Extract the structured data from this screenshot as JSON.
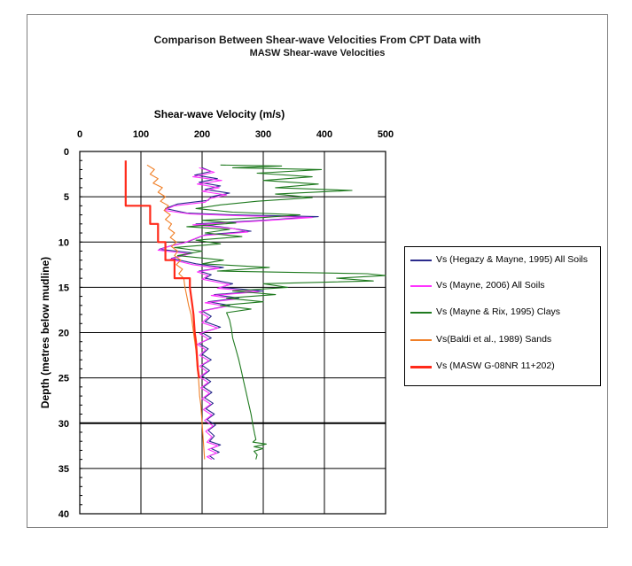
{
  "title_line1": "Comparison Between Shear-wave Velocities From CPT Data with",
  "title_line2": "MASW Shear-wave Velocities",
  "chart_data": {
    "type": "line",
    "xlabel": "Shear-wave Velocity (m/s)",
    "ylabel": "Depth (metres below mudline)",
    "x_axis_position": "top",
    "y_inverted": true,
    "xlim": [
      0,
      500
    ],
    "ylim": [
      0,
      40
    ],
    "xticks": [
      "0",
      "100",
      "200",
      "300",
      "400",
      "500"
    ],
    "yticks": [
      "0",
      "5",
      "10",
      "15",
      "20",
      "25",
      "30",
      "35",
      "40"
    ],
    "grid": true,
    "legend_position": "right",
    "series": [
      {
        "name": "Vs (Hegazy & Mayne, 1995) All Soils",
        "color": "#2b2b8c",
        "points": [
          [
            200,
            1.8
          ],
          [
            215,
            2.2
          ],
          [
            188,
            2.6
          ],
          [
            225,
            3.0
          ],
          [
            195,
            3.4
          ],
          [
            230,
            3.8
          ],
          [
            205,
            4.2
          ],
          [
            245,
            4.6
          ],
          [
            215,
            5.0
          ],
          [
            210,
            5.4
          ],
          [
            160,
            5.8
          ],
          [
            140,
            6.3
          ],
          [
            175,
            6.8
          ],
          [
            250,
            7.0
          ],
          [
            390,
            7.2
          ],
          [
            300,
            7.6
          ],
          [
            190,
            8.0
          ],
          [
            240,
            8.4
          ],
          [
            280,
            8.8
          ],
          [
            205,
            9.2
          ],
          [
            190,
            9.6
          ],
          [
            175,
            10.0
          ],
          [
            150,
            10.4
          ],
          [
            130,
            10.8
          ],
          [
            185,
            11.2
          ],
          [
            150,
            11.8
          ],
          [
            190,
            12.4
          ],
          [
            235,
            12.8
          ],
          [
            195,
            13.2
          ],
          [
            215,
            13.6
          ],
          [
            205,
            14.0
          ],
          [
            250,
            14.6
          ],
          [
            230,
            15.0
          ],
          [
            300,
            15.4
          ],
          [
            220,
            15.8
          ],
          [
            260,
            16.2
          ],
          [
            210,
            16.6
          ],
          [
            245,
            17.0
          ],
          [
            200,
            17.6
          ],
          [
            215,
            18.2
          ],
          [
            205,
            18.8
          ],
          [
            230,
            19.4
          ],
          [
            200,
            20.0
          ],
          [
            215,
            20.6
          ],
          [
            195,
            21.2
          ],
          [
            210,
            21.8
          ],
          [
            200,
            22.4
          ],
          [
            215,
            23.0
          ],
          [
            200,
            23.6
          ],
          [
            212,
            24.2
          ],
          [
            200,
            24.8
          ],
          [
            214,
            25.4
          ],
          [
            202,
            26.0
          ],
          [
            216,
            26.6
          ],
          [
            204,
            27.2
          ],
          [
            218,
            27.8
          ],
          [
            206,
            28.4
          ],
          [
            220,
            29.0
          ],
          [
            208,
            29.6
          ],
          [
            222,
            30.2
          ],
          [
            210,
            30.8
          ],
          [
            220,
            31.4
          ],
          [
            212,
            32.0
          ],
          [
            230,
            32.4
          ],
          [
            215,
            32.8
          ],
          [
            228,
            33.2
          ],
          [
            212,
            33.6
          ],
          [
            220,
            34.0
          ]
        ]
      },
      {
        "name": "Vs (Mayne, 2006) All Soils",
        "color": "#ff33ff",
        "points": [
          [
            195,
            1.8
          ],
          [
            220,
            2.3
          ],
          [
            185,
            2.8
          ],
          [
            232,
            3.2
          ],
          [
            192,
            3.6
          ],
          [
            228,
            4.0
          ],
          [
            200,
            4.4
          ],
          [
            240,
            4.8
          ],
          [
            212,
            5.2
          ],
          [
            205,
            5.6
          ],
          [
            155,
            6.0
          ],
          [
            138,
            6.5
          ],
          [
            180,
            6.9
          ],
          [
            260,
            7.1
          ],
          [
            380,
            7.3
          ],
          [
            290,
            7.7
          ],
          [
            185,
            8.1
          ],
          [
            250,
            8.5
          ],
          [
            275,
            8.9
          ],
          [
            200,
            9.3
          ],
          [
            185,
            9.7
          ],
          [
            170,
            10.1
          ],
          [
            145,
            10.5
          ],
          [
            128,
            10.9
          ],
          [
            180,
            11.3
          ],
          [
            148,
            11.9
          ],
          [
            185,
            12.5
          ],
          [
            228,
            12.9
          ],
          [
            192,
            13.3
          ],
          [
            210,
            13.7
          ],
          [
            200,
            14.1
          ],
          [
            245,
            14.7
          ],
          [
            225,
            15.1
          ],
          [
            292,
            15.5
          ],
          [
            215,
            15.9
          ],
          [
            255,
            16.3
          ],
          [
            205,
            16.7
          ],
          [
            240,
            17.1
          ],
          [
            195,
            17.7
          ],
          [
            210,
            18.3
          ],
          [
            200,
            18.9
          ],
          [
            226,
            19.5
          ],
          [
            196,
            20.1
          ],
          [
            210,
            20.7
          ],
          [
            192,
            21.3
          ],
          [
            206,
            21.9
          ],
          [
            196,
            22.5
          ],
          [
            211,
            23.1
          ],
          [
            196,
            23.7
          ],
          [
            208,
            24.3
          ],
          [
            196,
            24.9
          ],
          [
            210,
            25.5
          ],
          [
            198,
            26.1
          ],
          [
            212,
            26.7
          ],
          [
            200,
            27.3
          ],
          [
            214,
            27.9
          ],
          [
            202,
            28.5
          ],
          [
            216,
            29.1
          ],
          [
            204,
            29.7
          ],
          [
            218,
            30.3
          ],
          [
            206,
            30.9
          ],
          [
            216,
            31.5
          ],
          [
            208,
            32.1
          ],
          [
            226,
            32.5
          ],
          [
            210,
            32.9
          ],
          [
            224,
            33.3
          ],
          [
            208,
            33.7
          ],
          [
            216,
            34.0
          ]
        ]
      },
      {
        "name": "Vs (Mayne & Rix, 1995) Clays",
        "color": "#1f7a1f",
        "points": [
          [
            230,
            1.5
          ],
          [
            330,
            1.6
          ],
          [
            250,
            1.8
          ],
          [
            395,
            2.0
          ],
          [
            290,
            2.4
          ],
          [
            380,
            2.8
          ],
          [
            300,
            3.2
          ],
          [
            390,
            3.6
          ],
          [
            320,
            4.0
          ],
          [
            445,
            4.3
          ],
          [
            320,
            4.7
          ],
          [
            380,
            5.1
          ],
          [
            290,
            5.5
          ],
          [
            230,
            5.9
          ],
          [
            190,
            6.3
          ],
          [
            250,
            6.7
          ],
          [
            360,
            7.0
          ],
          [
            300,
            7.3
          ],
          [
            200,
            7.6
          ],
          [
            255,
            7.9
          ],
          [
            175,
            8.3
          ],
          [
            245,
            8.6
          ],
          [
            205,
            9.0
          ],
          [
            265,
            9.4
          ],
          [
            190,
            9.8
          ],
          [
            230,
            10.2
          ],
          [
            155,
            10.6
          ],
          [
            200,
            11.0
          ],
          [
            160,
            11.5
          ],
          [
            235,
            12.0
          ],
          [
            200,
            12.4
          ],
          [
            310,
            12.8
          ],
          [
            225,
            13.2
          ],
          [
            470,
            13.5
          ],
          [
            500,
            13.7
          ],
          [
            420,
            14.0
          ],
          [
            480,
            14.3
          ],
          [
            300,
            14.6
          ],
          [
            340,
            15.0
          ],
          [
            250,
            15.4
          ],
          [
            320,
            15.8
          ],
          [
            240,
            16.2
          ],
          [
            300,
            16.6
          ],
          [
            230,
            17.0
          ],
          [
            280,
            17.4
          ],
          [
            240,
            17.8
          ],
          [
            245,
            18.6
          ],
          [
            248,
            19.6
          ],
          [
            250,
            20.6
          ],
          [
            255,
            21.8
          ],
          [
            260,
            23.0
          ],
          [
            264,
            24.2
          ],
          [
            268,
            25.4
          ],
          [
            272,
            26.6
          ],
          [
            276,
            27.8
          ],
          [
            280,
            29.0
          ],
          [
            283,
            30.2
          ],
          [
            286,
            31.2
          ],
          [
            288,
            31.8
          ],
          [
            283,
            32.1
          ],
          [
            305,
            32.3
          ],
          [
            285,
            32.6
          ],
          [
            300,
            32.8
          ],
          [
            285,
            33.1
          ],
          [
            290,
            33.5
          ],
          [
            288,
            34.0
          ]
        ]
      },
      {
        "name": "Vs(Baldi et al., 1989) Sands",
        "color": "#f07f27",
        "points": [
          [
            110,
            1.5
          ],
          [
            122,
            2.0
          ],
          [
            115,
            2.5
          ],
          [
            128,
            3.0
          ],
          [
            120,
            3.5
          ],
          [
            135,
            4.0
          ],
          [
            128,
            4.5
          ],
          [
            140,
            5.0
          ],
          [
            132,
            5.5
          ],
          [
            145,
            6.0
          ],
          [
            138,
            6.5
          ],
          [
            148,
            7.0
          ],
          [
            140,
            7.5
          ],
          [
            150,
            8.0
          ],
          [
            145,
            8.5
          ],
          [
            155,
            9.0
          ],
          [
            148,
            9.5
          ],
          [
            158,
            10.0
          ],
          [
            150,
            10.5
          ],
          [
            160,
            11.0
          ],
          [
            155,
            11.5
          ],
          [
            165,
            12.0
          ],
          [
            158,
            12.5
          ],
          [
            168,
            13.0
          ],
          [
            162,
            13.5
          ],
          [
            170,
            14.0
          ],
          [
            172,
            15.0
          ],
          [
            175,
            16.0
          ],
          [
            178,
            17.0
          ],
          [
            182,
            18.0
          ],
          [
            184,
            19.0
          ],
          [
            186,
            20.0
          ],
          [
            188,
            21.0
          ],
          [
            190,
            22.0
          ],
          [
            191,
            23.0
          ],
          [
            192,
            24.0
          ],
          [
            194,
            25.0
          ],
          [
            195,
            26.0
          ],
          [
            196,
            27.0
          ],
          [
            198,
            28.0
          ],
          [
            199,
            29.0
          ],
          [
            200,
            30.0
          ],
          [
            201,
            31.0
          ],
          [
            202,
            32.0
          ],
          [
            203,
            33.0
          ],
          [
            204,
            34.0
          ]
        ]
      },
      {
        "name": "Vs (MASW G-08NR 11+202)",
        "color": "#ff2a1a",
        "points": [
          [
            75,
            1.0
          ],
          [
            75,
            6.0
          ],
          [
            115,
            6.0
          ],
          [
            115,
            8.0
          ],
          [
            128,
            8.0
          ],
          [
            128,
            10.0
          ],
          [
            140,
            10.0
          ],
          [
            140,
            12.0
          ],
          [
            155,
            12.0
          ],
          [
            155,
            14.0
          ],
          [
            180,
            14.0
          ],
          [
            180,
            15.0
          ],
          [
            182,
            16.0
          ],
          [
            184,
            17.0
          ],
          [
            186,
            18.0
          ],
          [
            187,
            19.0
          ],
          [
            188,
            20.0
          ],
          [
            190,
            21.0
          ],
          [
            191,
            22.0
          ],
          [
            192,
            23.0
          ],
          [
            193,
            24.0
          ],
          [
            195,
            25.0
          ]
        ]
      }
    ]
  }
}
